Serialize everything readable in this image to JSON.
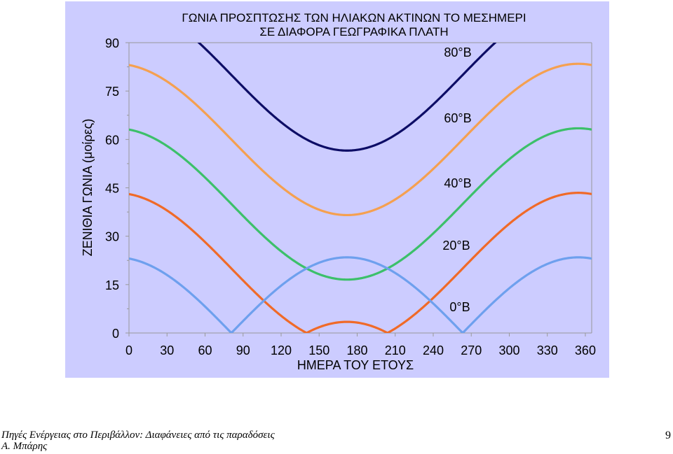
{
  "chart_data": {
    "type": "line",
    "title_line1": "ΓΩΝΙΑ ΠΡΟΣΠΤΩΣΗΣ ΤΩΝ ΗΛΙΑΚΩΝ ΑΚΤΙΝΩΝ ΤΟ ΜΕΣΗΜΕΡΙ",
    "title_line2": "ΣΕ ΔΙΑΦΟΡΑ ΓΕΩΓΡΑΦΙΚΑ ΠΛΑΤΗ",
    "xlabel": "ΗΜΕΡΑ ΤΟΥ ΕΤΟΥΣ",
    "ylabel": "ΖΕΝΙΘΙΑ ΓΩΝΙΑ (μοίρες)",
    "xlim": [
      0,
      365
    ],
    "ylim": [
      0,
      90
    ],
    "xticks": [
      "0",
      "30",
      "60",
      "90",
      "120",
      "150",
      "180",
      "210",
      "240",
      "270",
      "300",
      "330",
      "360"
    ],
    "yticks": [
      "0",
      "15",
      "30",
      "45",
      "60",
      "75",
      "90"
    ],
    "grid": false,
    "declination_model": {
      "amplitude_deg": 23.45,
      "peak_day": 172
    },
    "series": [
      {
        "name": "80°Β",
        "latitude": 80,
        "color": "#0d0d66",
        "points": [
          [
            60,
            90
          ],
          [
            90,
            79.6
          ],
          [
            120,
            65.1
          ],
          [
            150,
            58.0
          ],
          [
            172,
            56.6
          ],
          [
            180,
            56.8
          ],
          [
            210,
            62.8
          ],
          [
            240,
            73.1
          ],
          [
            270,
            85.5
          ],
          [
            282,
            90
          ]
        ]
      },
      {
        "name": "60°Β",
        "latitude": 60,
        "color": "#f5a050",
        "points": [
          [
            0,
            83.1
          ],
          [
            30,
            77.8
          ],
          [
            60,
            68.1
          ],
          [
            90,
            56.1
          ],
          [
            120,
            45.1
          ],
          [
            150,
            38.0
          ],
          [
            172,
            36.6
          ],
          [
            180,
            36.8
          ],
          [
            210,
            42.8
          ],
          [
            240,
            53.1
          ],
          [
            270,
            65.5
          ],
          [
            300,
            76.2
          ],
          [
            330,
            82.5
          ],
          [
            356,
            83.4
          ],
          [
            365,
            83.0
          ]
        ]
      },
      {
        "name": "40°Β",
        "latitude": 40,
        "color": "#3cc06a",
        "points": [
          [
            0,
            63.1
          ],
          [
            30,
            57.8
          ],
          [
            60,
            48.1
          ],
          [
            90,
            36.1
          ],
          [
            120,
            25.1
          ],
          [
            150,
            18.0
          ],
          [
            172,
            16.6
          ],
          [
            180,
            16.8
          ],
          [
            210,
            22.8
          ],
          [
            240,
            33.1
          ],
          [
            270,
            45.5
          ],
          [
            300,
            56.2
          ],
          [
            330,
            62.5
          ],
          [
            356,
            63.4
          ],
          [
            365,
            63.0
          ]
        ]
      },
      {
        "name": "20°Β",
        "latitude": 20,
        "color": "#f06a28",
        "points": [
          [
            0,
            43.1
          ],
          [
            30,
            37.8
          ],
          [
            60,
            28.1
          ],
          [
            90,
            16.1
          ],
          [
            120,
            5.1
          ],
          [
            140,
            0
          ],
          [
            150,
            1.9
          ],
          [
            172,
            3.4
          ],
          [
            180,
            3.2
          ],
          [
            200,
            0
          ],
          [
            210,
            2.8
          ],
          [
            240,
            13.1
          ],
          [
            270,
            25.5
          ],
          [
            300,
            36.2
          ],
          [
            330,
            42.5
          ],
          [
            356,
            43.4
          ],
          [
            365,
            43.0
          ]
        ]
      },
      {
        "name": "0°Β",
        "latitude": 0,
        "color": "#6ea0ee",
        "points": [
          [
            0,
            23.1
          ],
          [
            30,
            17.8
          ],
          [
            60,
            8.1
          ],
          [
            80,
            0
          ],
          [
            90,
            3.9
          ],
          [
            120,
            14.9
          ],
          [
            150,
            22.0
          ],
          [
            172,
            23.4
          ],
          [
            180,
            23.2
          ],
          [
            210,
            17.2
          ],
          [
            240,
            6.9
          ],
          [
            265,
            0
          ],
          [
            270,
            5.5
          ],
          [
            300,
            16.2
          ],
          [
            330,
            22.5
          ],
          [
            356,
            23.4
          ],
          [
            365,
            23.0
          ]
        ]
      }
    ]
  },
  "footer": {
    "source_line1": "Πηγές Ενέργειας στο Περιβάλλον: Διαφάνειες από τις παραδόσεις",
    "source_line2": "Α. Μπάρης",
    "page_number": "9"
  }
}
